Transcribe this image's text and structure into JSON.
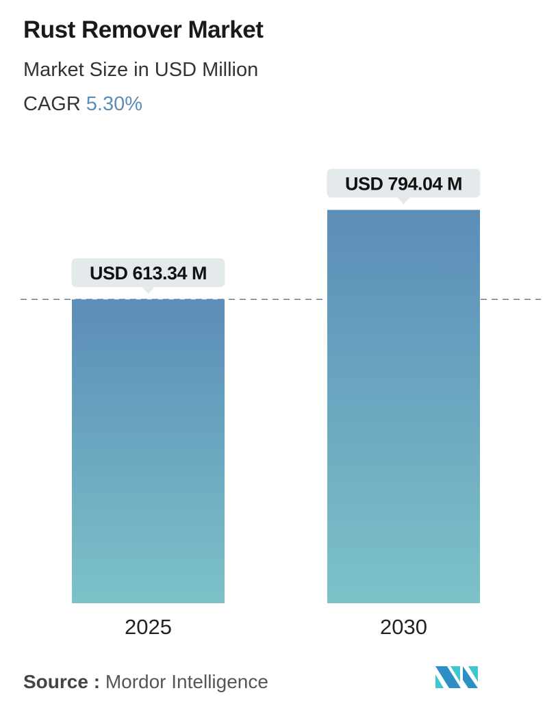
{
  "title": "Rust Remover Market",
  "subtitle": "Market Size in USD Million",
  "cagr_label": "CAGR",
  "cagr_value": "5.30%",
  "source_label": "Source :",
  "source_value": "Mordor Intelligence",
  "colors": {
    "bar_top": "#5b8db8",
    "bar_bottom": "#7cc2c8",
    "cagr": "#5b8db8",
    "callout": "#e4e9ec",
    "dashed_line": "#5b7f99"
  },
  "chart_data": {
    "type": "bar",
    "categories": [
      "2025",
      "2030"
    ],
    "values": [
      613.34,
      794.04
    ],
    "data_labels": [
      "USD 613.34 M",
      "USD 794.04 M"
    ],
    "title": "Rust Remover Market",
    "ylabel": "",
    "xlabel": "",
    "grid": false,
    "reference_line": 613.34
  }
}
